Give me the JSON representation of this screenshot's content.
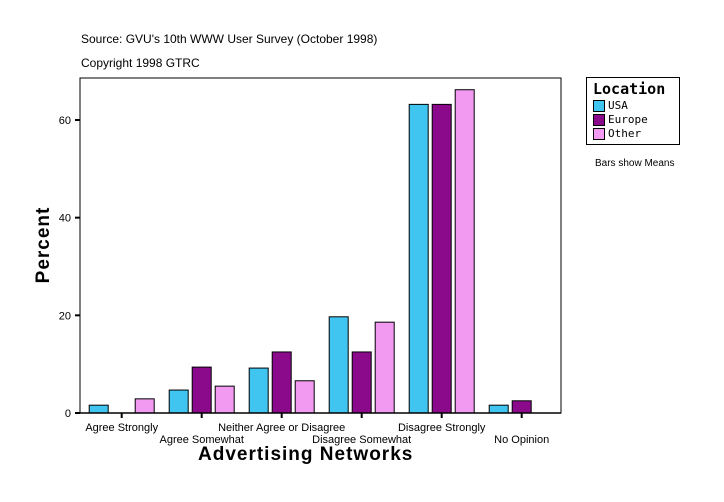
{
  "chart_data": {
    "type": "bar",
    "title": "Source: GVU's 10th WWW User Survey (October 1998)",
    "subtitle": "Copyright 1998 GTRC",
    "xlabel": "Advertising Networks",
    "ylabel": "Percent",
    "note": "Bars show Means",
    "categories": [
      "Agree Strongly",
      "Agree Somewhat",
      "Neither Agree or Disagree",
      "Disagree Somewhat",
      "Disagree Strongly",
      "No Opinion"
    ],
    "series": [
      {
        "name": "USA",
        "color": "#40c4f0",
        "values": [
          1.6,
          4.7,
          9.2,
          19.7,
          63.2,
          1.6
        ]
      },
      {
        "name": "Europe",
        "color": "#8b0a8b",
        "values": [
          null,
          9.4,
          12.5,
          12.5,
          63.2,
          2.5
        ]
      },
      {
        "name": "Other",
        "color": "#f29af2",
        "values": [
          2.9,
          5.5,
          6.6,
          18.6,
          66.2,
          null
        ]
      }
    ],
    "yticks": [
      0,
      20,
      40,
      60
    ],
    "ylim": [
      0,
      68.6
    ],
    "legend_title": "Location",
    "legend_position": "right",
    "grid": false
  }
}
